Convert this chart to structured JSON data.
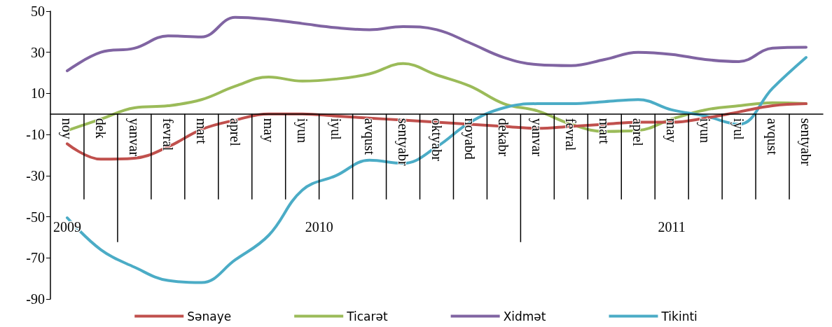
{
  "chart_data": {
    "type": "line",
    "categories": [
      "noy",
      "dek",
      "yanvar",
      "fevral",
      "mart",
      "aprel",
      "may",
      "iyun",
      "iyul",
      "avqust",
      "sentyabr",
      "oktyabr",
      "noyabd",
      "dekabr",
      "yanvar",
      "fevral",
      "mart",
      "aprel",
      "may",
      "iyun",
      "iyul",
      "avqust",
      "sentyabr"
    ],
    "series": [
      {
        "name": "Sənaye",
        "color": "#c0504d",
        "values": [
          -14.5,
          -22,
          -21.5,
          -16,
          -7.5,
          -3,
          0,
          0,
          -1,
          -2,
          -3,
          -4,
          -5,
          -6,
          -7,
          -6,
          -5,
          -4,
          -4,
          -2,
          1,
          4,
          5
        ]
      },
      {
        "name": "Ticarət",
        "color": "#9bbb59",
        "values": [
          -8,
          -2.5,
          3,
          4,
          7,
          13.5,
          18,
          16,
          17,
          19.5,
          24.5,
          19,
          13.5,
          5,
          1.5,
          -5,
          -8.5,
          -8,
          -2.5,
          2,
          4,
          5.5,
          5
        ]
      },
      {
        "name": "Xidmət",
        "color": "#8064a2",
        "values": [
          21,
          30,
          32,
          38,
          37.5,
          47,
          46,
          44,
          42,
          41,
          42.5,
          41,
          34.5,
          27.5,
          24,
          23.5,
          26.5,
          30,
          29,
          26.5,
          25.5,
          32,
          32.5
        ]
      },
      {
        "name": "Tikinti",
        "color": "#4bacc6",
        "values": [
          -50.5,
          -66,
          -74.5,
          -81,
          -82,
          -71,
          -59,
          -37,
          -30,
          -22.5,
          -24,
          -16,
          -4,
          3,
          5,
          5,
          6,
          7,
          2,
          -1,
          -5,
          12.5,
          27.5
        ]
      }
    ],
    "annotations": [
      "2009",
      "2010",
      "2011"
    ],
    "ylim": [
      -90,
      50
    ],
    "yticks": [
      -90,
      -70,
      -50,
      -30,
      -10,
      10,
      30,
      50
    ],
    "grid": false,
    "legend": "bottom",
    "marker": "none",
    "line_style": "solid"
  }
}
